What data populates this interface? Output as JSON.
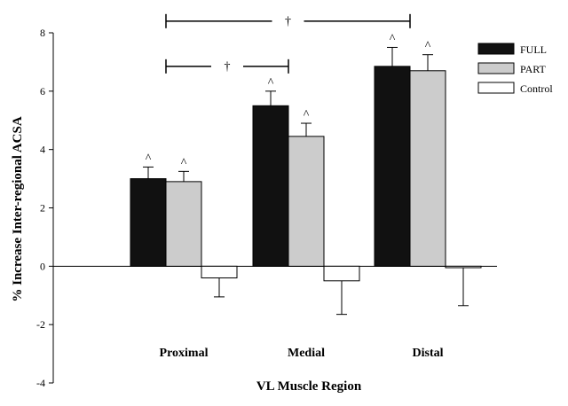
{
  "chart_data": {
    "type": "bar",
    "title": "",
    "xlabel": "VL Muscle Region",
    "ylabel": "% Increase Inter-regional ACSA",
    "ylim": [
      -4,
      8
    ],
    "yticks": [
      -4,
      -2,
      0,
      2,
      4,
      6,
      8
    ],
    "categories": [
      "Proximal",
      "Medial",
      "Distal"
    ],
    "series": [
      {
        "name": "FULL",
        "color": "#111111",
        "values": [
          3.0,
          5.5,
          6.85
        ],
        "errors": [
          0.4,
          0.5,
          0.65
        ]
      },
      {
        "name": "PART",
        "color": "#cccccc",
        "values": [
          2.9,
          4.45,
          6.7
        ],
        "errors": [
          0.35,
          0.45,
          0.55
        ]
      },
      {
        "name": "Control",
        "color": "#ffffff",
        "values": [
          -0.4,
          -0.5,
          -0.05
        ],
        "errors": [
          0.65,
          1.15,
          1.3
        ]
      }
    ],
    "significance_marker": "^",
    "significance_series": [
      "FULL",
      "PART"
    ],
    "brackets": [
      {
        "label": "†",
        "from": "Proximal",
        "to": "Distal",
        "y": 8.4
      },
      {
        "label": "†",
        "from": "Proximal",
        "to": "Medial",
        "y": 6.85
      }
    ],
    "legend_position": "top-right",
    "grid": false
  }
}
